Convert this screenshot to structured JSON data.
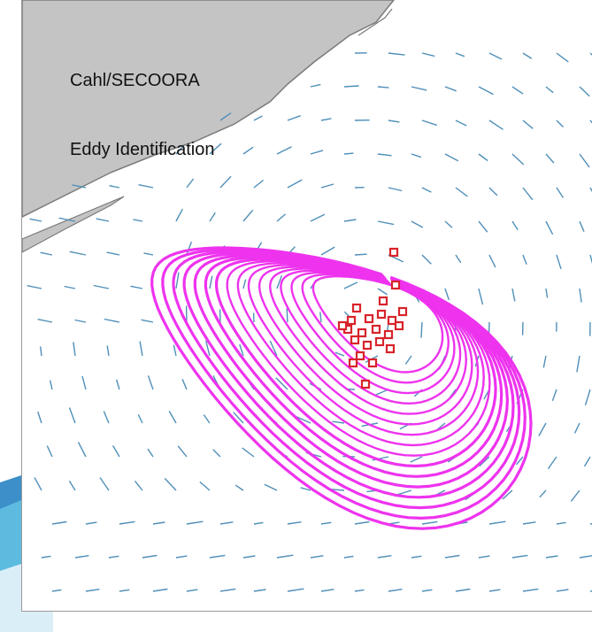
{
  "map": {
    "title_line1": "Cahl/SECOORA",
    "title_line2": "Eddy Identification"
  },
  "colors": {
    "land": "#c4c4c4",
    "land_edge": "#7a7a7a",
    "eddy_contour": "#ee33ee",
    "drifter_marker": "#d8232a",
    "current_vector": "#4f8fb8",
    "background_band": "#3c8fc8"
  },
  "layers": [
    "coastline-land",
    "surface-current-vectors",
    "eddy-streamlines",
    "drifter-positions"
  ]
}
